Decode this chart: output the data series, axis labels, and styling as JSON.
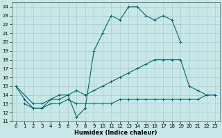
{
  "xlabel": "Humidex (Indice chaleur)",
  "bg_color": "#c8e8e8",
  "grid_color": "#aacccc",
  "line_color": "#006666",
  "xlim": [
    -0.5,
    23.5
  ],
  "ylim": [
    11,
    24.5
  ],
  "xticks": [
    0,
    1,
    2,
    3,
    4,
    5,
    6,
    7,
    8,
    9,
    10,
    11,
    12,
    13,
    14,
    15,
    16,
    17,
    18,
    19,
    20,
    21,
    22,
    23
  ],
  "yticks": [
    11,
    12,
    13,
    14,
    15,
    16,
    17,
    18,
    19,
    20,
    21,
    22,
    23,
    24
  ],
  "lines": [
    {
      "x": [
        0,
        1,
        2,
        3,
        4,
        5,
        6,
        7,
        8,
        9,
        10,
        11,
        12,
        13,
        14,
        15,
        16,
        17,
        18,
        19
      ],
      "y": [
        15,
        13.5,
        12.5,
        12.5,
        13.5,
        13.5,
        14,
        11.5,
        12.5,
        19,
        21,
        23,
        22.5,
        24,
        24,
        23,
        22.5,
        23,
        22.5,
        20
      ]
    },
    {
      "x": [
        0,
        2,
        3,
        4,
        5,
        6,
        7,
        8,
        9,
        10,
        11,
        12,
        13,
        14,
        15,
        16,
        17,
        18,
        19,
        20,
        21,
        22,
        23
      ],
      "y": [
        15,
        13,
        13,
        13.5,
        14,
        14,
        14.5,
        14,
        14.5,
        15,
        15.5,
        16,
        16.5,
        17,
        17.5,
        18,
        18,
        18,
        18,
        15,
        14.5,
        14,
        14
      ]
    },
    {
      "x": [
        1,
        2,
        3,
        4,
        5,
        6,
        7,
        8,
        9,
        10,
        11,
        12,
        13,
        14,
        15,
        16,
        17,
        18,
        19,
        20,
        21,
        22,
        23
      ],
      "y": [
        13,
        12.5,
        12.5,
        13,
        13,
        13.5,
        13,
        13,
        13,
        13,
        13,
        13.5,
        13.5,
        13.5,
        13.5,
        13.5,
        13.5,
        13.5,
        13.5,
        13.5,
        13.5,
        14,
        14
      ]
    }
  ]
}
